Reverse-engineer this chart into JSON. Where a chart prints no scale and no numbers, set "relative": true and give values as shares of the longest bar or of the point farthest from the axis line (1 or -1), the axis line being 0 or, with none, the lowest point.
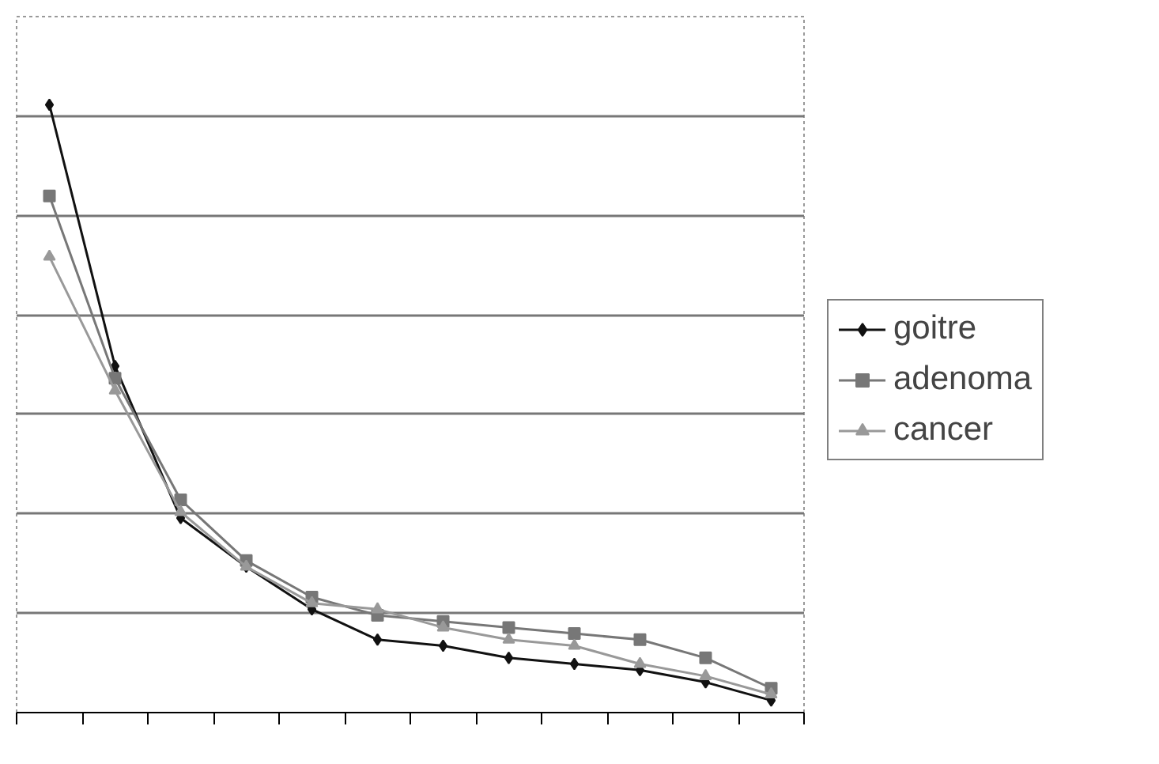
{
  "chart_data": {
    "type": "line",
    "relative": true,
    "categories": [
      null,
      null,
      null,
      null,
      null,
      null,
      null,
      null,
      null,
      null,
      null,
      null
    ],
    "series": [
      {
        "name": "goitre",
        "color": "#111111",
        "marker": "diamond",
        "values": [
          1,
          0.57,
          0.32,
          0.24,
          0.17,
          0.12,
          0.11,
          0.09,
          0.08,
          0.07,
          0.05,
          0.02
        ]
      },
      {
        "name": "adenoma",
        "color": "#777777",
        "marker": "square",
        "values": [
          0.85,
          0.55,
          0.35,
          0.25,
          0.19,
          0.16,
          0.15,
          0.14,
          0.13,
          0.12,
          0.09,
          0.04
        ]
      },
      {
        "name": "cancer",
        "color": "#999999",
        "marker": "triangle",
        "values": [
          0.75,
          0.53,
          0.33,
          0.24,
          0.18,
          0.17,
          0.14,
          0.12,
          0.11,
          0.08,
          0.06,
          0.03
        ]
      }
    ],
    "grid": "y",
    "legend": "right",
    "line_style": "solid",
    "tick_labels": false
  }
}
